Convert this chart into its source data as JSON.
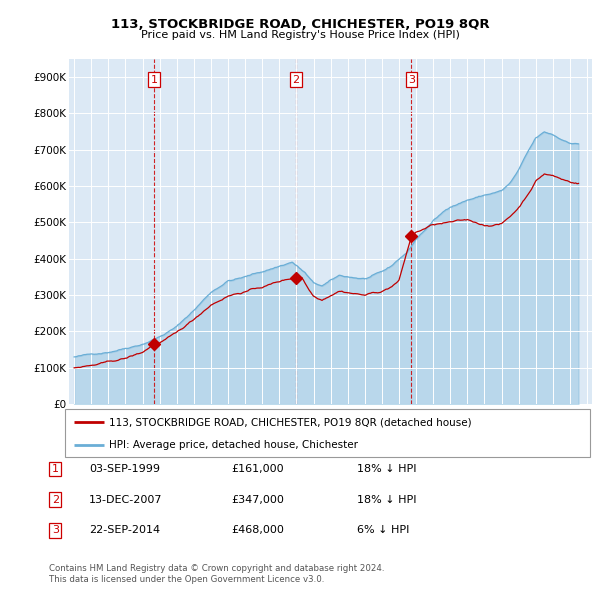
{
  "title": "113, STOCKBRIDGE ROAD, CHICHESTER, PO19 8QR",
  "subtitle": "Price paid vs. HM Land Registry's House Price Index (HPI)",
  "ylim": [
    0,
    950000
  ],
  "yticks": [
    0,
    100000,
    200000,
    300000,
    400000,
    500000,
    600000,
    700000,
    800000,
    900000
  ],
  "ytick_labels": [
    "£0",
    "£100K",
    "£200K",
    "£300K",
    "£400K",
    "£500K",
    "£600K",
    "£700K",
    "£800K",
    "£900K"
  ],
  "hpi_color": "#6aaed6",
  "price_color": "#c00000",
  "vline_color": "#cc0000",
  "background_color": "#ffffff",
  "grid_color": "#d0dce8",
  "chart_bg": "#dce9f5",
  "transactions": [
    {
      "label": "1",
      "date_str": "03-SEP-1999",
      "year_x": 1999.67,
      "price": 161000,
      "pct": "18%",
      "dir": "↓"
    },
    {
      "label": "2",
      "date_str": "13-DEC-2007",
      "year_x": 2007.96,
      "price": 347000,
      "pct": "18%",
      "dir": "↓"
    },
    {
      "label": "3",
      "date_str": "22-SEP-2014",
      "year_x": 2014.72,
      "price": 468000,
      "pct": "6%",
      "dir": "↓"
    }
  ],
  "legend_line1": "113, STOCKBRIDGE ROAD, CHICHESTER, PO19 8QR (detached house)",
  "legend_line2": "HPI: Average price, detached house, Chichester",
  "footnote1": "Contains HM Land Registry data © Crown copyright and database right 2024.",
  "footnote2": "This data is licensed under the Open Government Licence v3.0.",
  "xlim_left": 1994.7,
  "xlim_right": 2025.3
}
